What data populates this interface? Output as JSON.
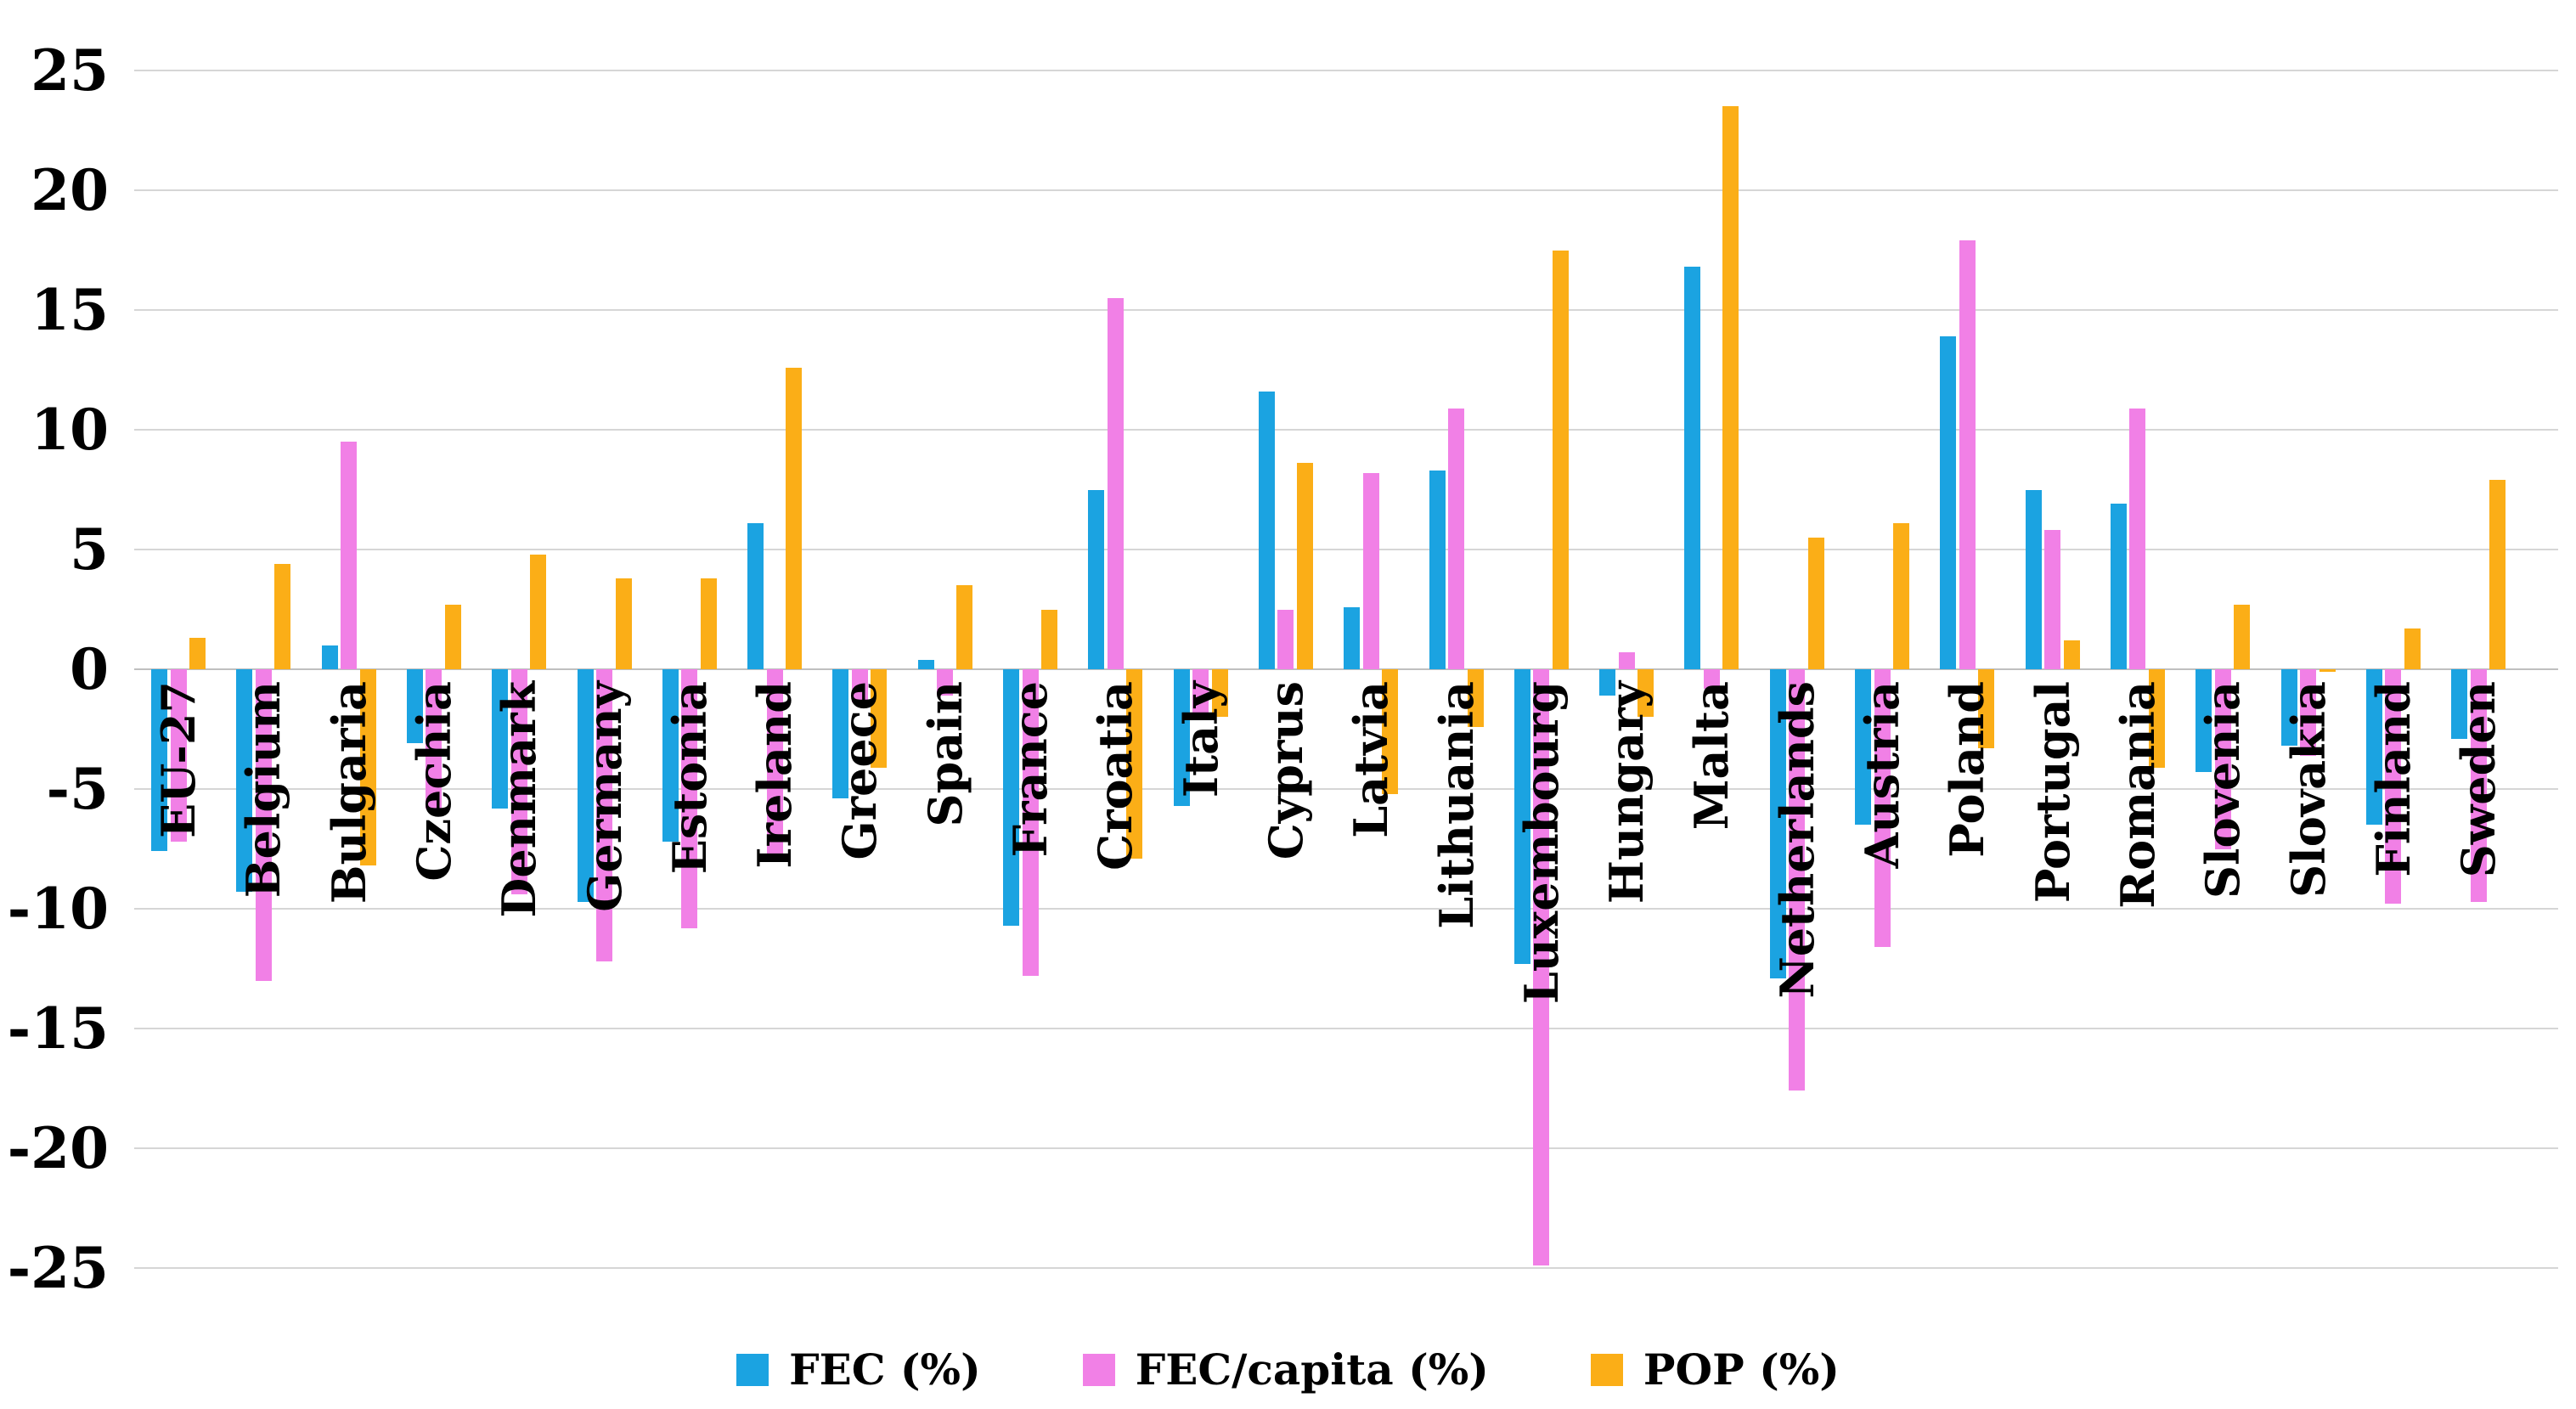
{
  "chart_data": {
    "type": "bar",
    "title": "",
    "xlabel": "",
    "ylabel": "",
    "categories": [
      "EU-27",
      "Belgium",
      "Bulgaria",
      "Czechia",
      "Denmark",
      "Germany",
      "Estonia",
      "Ireland",
      "Greece",
      "Spain",
      "France",
      "Croatia",
      "Italy",
      "Cyprus",
      "Latvia",
      "Lithuania",
      "Luxembourg",
      "Hungary",
      "Malta",
      "Netherlands",
      "Austria",
      "Poland",
      "Portugal",
      "Romania",
      "Slovenia",
      "Slovakia",
      "Finland",
      "Sweden"
    ],
    "series": [
      {
        "name": "FEC (%)",
        "color": "#1ba3e1",
        "values": [
          -7.6,
          -9.3,
          1.0,
          -3.1,
          -5.8,
          -9.7,
          -7.2,
          6.1,
          -5.4,
          0.4,
          -10.7,
          7.5,
          -5.7,
          11.6,
          2.6,
          8.3,
          -12.3,
          -1.1,
          16.8,
          -12.9,
          -6.5,
          13.9,
          7.5,
          6.9,
          -4.3,
          -3.2,
          -6.5,
          -2.9
        ]
      },
      {
        "name": "FEC/capita (%)",
        "color": "#f180e6",
        "values": [
          -7.2,
          -13.0,
          9.5,
          -5.8,
          -9.4,
          -12.2,
          -10.8,
          -8.0,
          -1.4,
          -1.1,
          -12.8,
          15.5,
          -1.9,
          2.5,
          8.2,
          10.9,
          -24.9,
          0.7,
          -0.8,
          -17.6,
          -11.6,
          17.9,
          5.8,
          10.9,
          -7.5,
          -3.6,
          -9.8,
          -9.7
        ]
      },
      {
        "name": "POP (%)",
        "color": "#fbae17",
        "values": [
          1.3,
          4.4,
          -8.2,
          2.7,
          4.8,
          3.8,
          3.8,
          12.6,
          -4.1,
          3.5,
          2.5,
          -7.9,
          -2.0,
          8.6,
          -5.2,
          -2.4,
          17.5,
          -2.0,
          23.5,
          5.5,
          6.1,
          -3.3,
          1.2,
          -4.1,
          2.7,
          -0.1,
          1.7,
          7.9
        ]
      }
    ],
    "ylim": [
      -25,
      25
    ],
    "yticks": [
      25,
      20,
      15,
      10,
      5,
      0,
      -5,
      -10,
      -15,
      -20,
      -25
    ],
    "grid": true,
    "legend_position": "bottom",
    "background_color": "#ffffff",
    "gridline_color": "#d6d6d6"
  },
  "legend": {
    "items": [
      {
        "label": "FEC (%)",
        "color": "#1ba3e1"
      },
      {
        "label": "FEC/capita (%)",
        "color": "#f180e6"
      },
      {
        "label": "POP (%)",
        "color": "#fbae17"
      }
    ]
  }
}
